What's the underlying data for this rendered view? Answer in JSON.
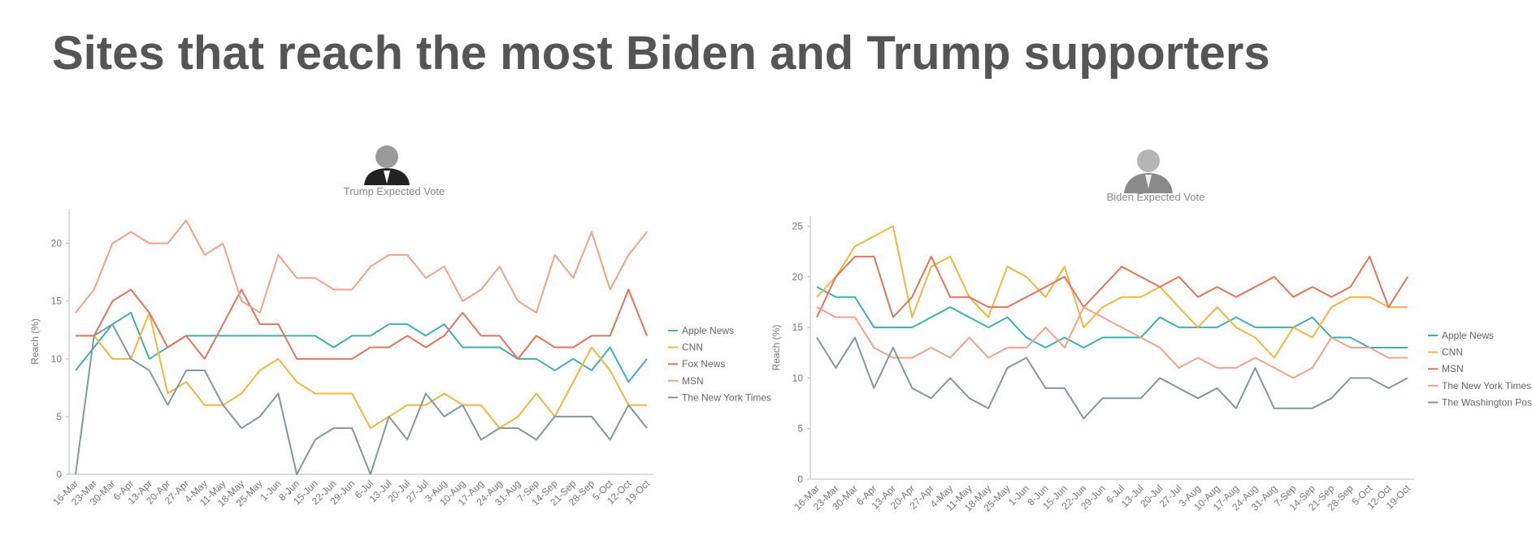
{
  "header": {
    "title": "Sites that reach the most Biden and Trump supporters"
  },
  "chart_data": [
    {
      "type": "line",
      "title": "Trump Expected Vote",
      "ylabel": "Reach (%)",
      "categories": [
        "16-Mar",
        "23-Mar",
        "30-Mar",
        "6-Apr",
        "13-Apr",
        "20-Apr",
        "27-Apr",
        "4-May",
        "11-May",
        "18-May",
        "25-May",
        "1-Jun",
        "8-Jun",
        "15-Jun",
        "22-Jun",
        "29-Jun",
        "6-Jul",
        "13-Jul",
        "20-Jul",
        "27-Jul",
        "3-Aug",
        "10-Aug",
        "17-Aug",
        "24-Aug",
        "31-Aug",
        "7-Sep",
        "14-Sep",
        "21-Sep",
        "28-Sep",
        "5-Oct",
        "12-Oct",
        "19-Oct"
      ],
      "ylim": [
        0,
        23
      ],
      "yticks": [
        0,
        5,
        10,
        15,
        20
      ],
      "series": [
        {
          "name": "Apple News",
          "color": "#3fb0b0",
          "values": [
            9,
            11,
            13,
            14,
            10,
            11,
            12,
            12,
            12,
            12,
            12,
            12,
            12,
            12,
            11,
            12,
            12,
            13,
            13,
            12,
            13,
            11,
            11,
            11,
            10,
            10,
            9,
            10,
            9,
            11,
            8,
            10
          ]
        },
        {
          "name": "CNN",
          "color": "#f0b73f",
          "values": [
            12,
            12,
            10,
            10,
            14,
            7,
            8,
            6,
            6,
            7,
            9,
            10,
            8,
            7,
            7,
            7,
            4,
            5,
            6,
            6,
            7,
            6,
            6,
            4,
            5,
            7,
            5,
            8,
            11,
            9,
            6,
            6
          ]
        },
        {
          "name": "Fox News",
          "color": "#e8735a",
          "values": [
            12,
            12,
            15,
            16,
            14,
            11,
            12,
            10,
            13,
            16,
            13,
            13,
            10,
            10,
            10,
            10,
            11,
            11,
            12,
            11,
            12,
            14,
            12,
            12,
            10,
            12,
            11,
            11,
            12,
            12,
            16,
            12
          ]
        },
        {
          "name": "MSN",
          "color": "#f4a08a",
          "values": [
            14,
            16,
            20,
            21,
            20,
            20,
            22,
            19,
            20,
            15,
            14,
            19,
            17,
            17,
            16,
            16,
            18,
            19,
            19,
            17,
            18,
            15,
            16,
            18,
            15,
            14,
            19,
            17,
            21,
            16,
            19,
            21
          ]
        },
        {
          "name": "The New York Times",
          "color": "#7f9a98",
          "values": [
            0,
            12,
            13,
            10,
            9,
            6,
            9,
            9,
            6,
            4,
            5,
            7,
            0,
            3,
            4,
            4,
            0,
            5,
            3,
            7,
            5,
            6,
            3,
            4,
            4,
            3,
            5,
            5,
            5,
            3,
            6,
            4
          ]
        }
      ]
    },
    {
      "type": "line",
      "title": "Biden Expected Vote",
      "ylabel": "Reach (%)",
      "categories": [
        "16-Mar",
        "23-Mar",
        "30-Mar",
        "6-Apr",
        "13-Apr",
        "20-Apr",
        "27-Apr",
        "4-May",
        "11-May",
        "18-May",
        "25-May",
        "1-Jun",
        "8-Jun",
        "15-Jun",
        "22-Jun",
        "29-Jun",
        "6-Jul",
        "13-Jul",
        "20-Jul",
        "27-Jul",
        "3-Aug",
        "10-Aug",
        "17-Aug",
        "24-Aug",
        "31-Aug",
        "7-Sep",
        "14-Sep",
        "21-Sep",
        "28-Sep",
        "5-Oct",
        "12-Oct",
        "19-Oct"
      ],
      "ylim": [
        0,
        26
      ],
      "yticks": [
        0,
        5,
        10,
        15,
        20,
        25
      ],
      "series": [
        {
          "name": "Apple News",
          "color": "#3fb0b0",
          "values": [
            19,
            18,
            18,
            15,
            15,
            15,
            16,
            17,
            16,
            15,
            16,
            14,
            13,
            14,
            13,
            14,
            14,
            14,
            16,
            15,
            15,
            15,
            16,
            15,
            15,
            15,
            16,
            14,
            14,
            13,
            13,
            13
          ]
        },
        {
          "name": "CNN",
          "color": "#f0b73f",
          "values": [
            18,
            20,
            23,
            24,
            25,
            16,
            21,
            22,
            18,
            16,
            21,
            20,
            18,
            21,
            15,
            17,
            18,
            18,
            19,
            17,
            15,
            17,
            15,
            14,
            12,
            15,
            14,
            17,
            18,
            18,
            17,
            17
          ]
        },
        {
          "name": "MSN",
          "color": "#e8735a",
          "values": [
            16,
            20,
            22,
            22,
            16,
            18,
            22,
            18,
            18,
            17,
            17,
            18,
            19,
            20,
            17,
            19,
            21,
            20,
            19,
            20,
            18,
            19,
            18,
            19,
            20,
            18,
            19,
            18,
            19,
            22,
            17,
            20
          ]
        },
        {
          "name": "The New York Times",
          "color": "#f4a08a",
          "values": [
            17,
            16,
            16,
            13,
            12,
            12,
            13,
            12,
            14,
            12,
            13,
            13,
            15,
            13,
            17,
            16,
            15,
            14,
            13,
            11,
            12,
            11,
            11,
            12,
            11,
            10,
            11,
            14,
            13,
            13,
            12,
            12
          ]
        },
        {
          "name": "The Washington Post",
          "color": "#7f9a98",
          "values": [
            14,
            11,
            14,
            9,
            13,
            9,
            8,
            10,
            8,
            7,
            11,
            12,
            9,
            9,
            6,
            8,
            8,
            8,
            10,
            9,
            8,
            9,
            7,
            11,
            7,
            7,
            7,
            8,
            10,
            10,
            9,
            10
          ]
        }
      ]
    }
  ]
}
